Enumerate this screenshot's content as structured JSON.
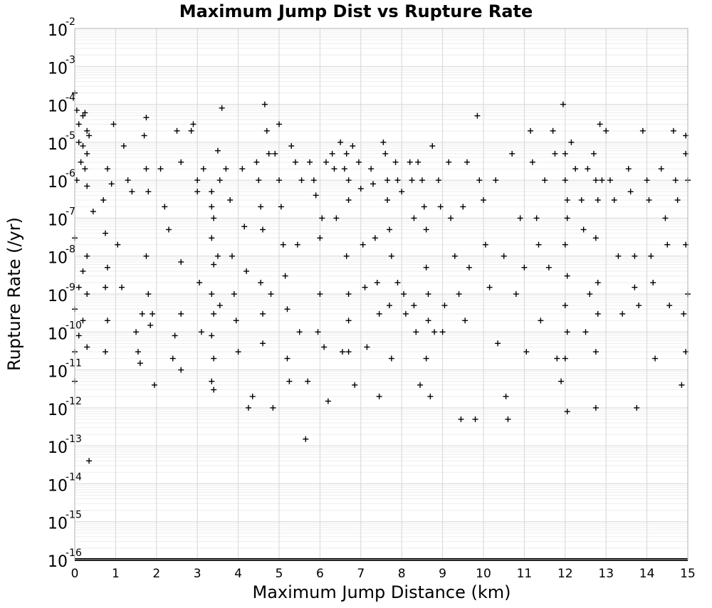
{
  "chart_data": {
    "type": "scatter",
    "title": "Maximum Jump Dist vs Rupture Rate",
    "xlabel": "Maximum Jump Distance (km)",
    "ylabel": "Rupture Rate (/yr)",
    "xlim": [
      0,
      15
    ],
    "ylim": [
      1e-16,
      0.01
    ],
    "yscale": "log",
    "grid": true,
    "marker": "+",
    "x_ticks": [
      "0",
      "1",
      "2",
      "3",
      "4",
      "5",
      "6",
      "7",
      "8",
      "9",
      "10",
      "11",
      "12",
      "13",
      "14",
      "15"
    ],
    "y_ticks": [
      {
        "base": "10",
        "exp": "-2"
      },
      {
        "base": "10",
        "exp": "-3"
      },
      {
        "base": "10",
        "exp": "-4"
      },
      {
        "base": "10",
        "exp": "-5"
      },
      {
        "base": "10",
        "exp": "-6"
      },
      {
        "base": "10",
        "exp": "-7"
      },
      {
        "base": "10",
        "exp": "-8"
      },
      {
        "base": "10",
        "exp": "-9"
      },
      {
        "base": "10",
        "exp": "-10"
      },
      {
        "base": "10",
        "exp": "-11"
      },
      {
        "base": "10",
        "exp": "-12"
      },
      {
        "base": "10",
        "exp": "-13"
      },
      {
        "base": "10",
        "exp": "-14"
      },
      {
        "base": "10",
        "exp": "-15"
      },
      {
        "base": "10",
        "exp": "-16"
      }
    ],
    "points": [
      [
        0.0,
        0.0002
      ],
      [
        0.05,
        7e-05
      ],
      [
        0.1,
        3e-05
      ],
      [
        0.2,
        5e-05
      ],
      [
        0.25,
        6e-05
      ],
      [
        0.3,
        2e-05
      ],
      [
        0.35,
        1.5e-05
      ],
      [
        0.1,
        1e-05
      ],
      [
        0.2,
        8e-06
      ],
      [
        0.3,
        5e-06
      ],
      [
        0.15,
        3e-06
      ],
      [
        0.25,
        2e-06
      ],
      [
        0.05,
        1e-06
      ],
      [
        0.3,
        7e-07
      ],
      [
        0.45,
        1.5e-07
      ],
      [
        0.0,
        3e-08
      ],
      [
        0.3,
        1e-08
      ],
      [
        0.2,
        4e-09
      ],
      [
        0.1,
        1.5e-09
      ],
      [
        0.3,
        1e-09
      ],
      [
        0.0,
        4e-10
      ],
      [
        0.2,
        2e-10
      ],
      [
        0.1,
        8e-11
      ],
      [
        0.3,
        4e-11
      ],
      [
        0.0,
        3e-11
      ],
      [
        0.0,
        5e-12
      ],
      [
        0.35,
        4e-14
      ],
      [
        0.75,
        4e-08
      ],
      [
        0.8,
        2e-06
      ],
      [
        0.9,
        8e-07
      ],
      [
        0.7,
        3e-07
      ],
      [
        0.95,
        3e-05
      ],
      [
        0.8,
        5e-09
      ],
      [
        0.75,
        1.5e-09
      ],
      [
        0.8,
        2e-10
      ],
      [
        0.75,
        3e-11
      ],
      [
        1.05,
        2e-08
      ],
      [
        1.15,
        1.5e-09
      ],
      [
        1.2,
        8e-06
      ],
      [
        1.3,
        1e-06
      ],
      [
        1.4,
        5e-07
      ],
      [
        1.5,
        1e-10
      ],
      [
        1.55,
        3e-11
      ],
      [
        1.6,
        1.5e-11
      ],
      [
        1.65,
        3e-10
      ],
      [
        1.75,
        4.5e-05
      ],
      [
        1.7,
        1.5e-05
      ],
      [
        1.75,
        2e-06
      ],
      [
        1.8,
        5e-07
      ],
      [
        1.75,
        1e-08
      ],
      [
        1.8,
        1e-09
      ],
      [
        1.85,
        1.5e-10
      ],
      [
        1.9,
        3e-10
      ],
      [
        1.95,
        4e-12
      ],
      [
        2.1,
        2e-06
      ],
      [
        2.2,
        2e-07
      ],
      [
        2.3,
        5e-08
      ],
      [
        2.4,
        2e-11
      ],
      [
        2.45,
        8e-11
      ],
      [
        2.5,
        2e-05
      ],
      [
        2.6,
        3e-06
      ],
      [
        2.6,
        7e-09
      ],
      [
        2.6,
        3e-10
      ],
      [
        2.6,
        1e-11
      ],
      [
        2.85,
        2e-05
      ],
      [
        2.9,
        3e-05
      ],
      [
        3.0,
        1e-06
      ],
      [
        3.0,
        5e-07
      ],
      [
        3.05,
        2e-09
      ],
      [
        3.1,
        1e-10
      ],
      [
        3.15,
        2e-06
      ],
      [
        3.35,
        5e-07
      ],
      [
        3.35,
        2e-07
      ],
      [
        3.4,
        1e-07
      ],
      [
        3.35,
        3e-08
      ],
      [
        3.4,
        6e-09
      ],
      [
        3.35,
        1e-09
      ],
      [
        3.4,
        3e-10
      ],
      [
        3.35,
        8e-11
      ],
      [
        3.4,
        2e-11
      ],
      [
        3.35,
        5e-12
      ],
      [
        3.4,
        3e-12
      ],
      [
        3.5,
        6e-06
      ],
      [
        3.55,
        1e-06
      ],
      [
        3.5,
        1e-08
      ],
      [
        3.55,
        5e-10
      ],
      [
        3.6,
        8e-05
      ],
      [
        3.7,
        2e-06
      ],
      [
        3.8,
        3e-07
      ],
      [
        3.85,
        1e-08
      ],
      [
        3.9,
        1e-09
      ],
      [
        3.95,
        2e-10
      ],
      [
        4.0,
        3e-11
      ],
      [
        4.1,
        2e-06
      ],
      [
        4.15,
        6e-08
      ],
      [
        4.2,
        4e-09
      ],
      [
        4.25,
        1e-12
      ],
      [
        4.35,
        2e-12
      ],
      [
        4.45,
        3e-06
      ],
      [
        4.5,
        1e-06
      ],
      [
        4.55,
        2e-07
      ],
      [
        4.6,
        5e-08
      ],
      [
        4.55,
        2e-09
      ],
      [
        4.6,
        3e-10
      ],
      [
        4.6,
        5e-11
      ],
      [
        4.65,
        0.0001
      ],
      [
        4.7,
        2e-05
      ],
      [
        4.75,
        5e-06
      ],
      [
        4.8,
        1e-09
      ],
      [
        4.85,
        1e-12
      ],
      [
        4.9,
        5e-06
      ],
      [
        5.0,
        1e-06
      ],
      [
        5.0,
        3e-05
      ],
      [
        5.05,
        2e-07
      ],
      [
        5.1,
        2e-08
      ],
      [
        5.15,
        3e-09
      ],
      [
        5.2,
        4e-10
      ],
      [
        5.2,
        2e-11
      ],
      [
        5.25,
        5e-12
      ],
      [
        5.3,
        8e-06
      ],
      [
        5.4,
        3e-06
      ],
      [
        5.45,
        2e-08
      ],
      [
        5.5,
        1e-10
      ],
      [
        5.55,
        1e-06
      ],
      [
        5.65,
        1.5e-13
      ],
      [
        5.7,
        5e-12
      ],
      [
        5.75,
        3e-06
      ],
      [
        5.85,
        1e-06
      ],
      [
        5.9,
        4e-07
      ],
      [
        5.95,
        1e-10
      ],
      [
        6.0,
        1e-09
      ],
      [
        6.0,
        3e-08
      ],
      [
        6.05,
        1e-07
      ],
      [
        6.1,
        4e-11
      ],
      [
        6.15,
        3e-06
      ],
      [
        6.2,
        1.5e-12
      ],
      [
        6.3,
        5e-06
      ],
      [
        6.35,
        2e-06
      ],
      [
        6.4,
        1e-07
      ],
      [
        6.5,
        1e-05
      ],
      [
        6.55,
        3e-11
      ],
      [
        6.6,
        2e-06
      ],
      [
        6.65,
        5e-06
      ],
      [
        6.7,
        1e-06
      ],
      [
        6.7,
        3e-07
      ],
      [
        6.65,
        1e-08
      ],
      [
        6.7,
        1e-09
      ],
      [
        6.7,
        2e-10
      ],
      [
        6.7,
        3e-11
      ],
      [
        6.8,
        8e-06
      ],
      [
        6.85,
        4e-12
      ],
      [
        6.95,
        3e-06
      ],
      [
        7.0,
        6e-07
      ],
      [
        7.05,
        2e-08
      ],
      [
        7.1,
        1.5e-09
      ],
      [
        7.15,
        4e-11
      ],
      [
        7.25,
        2e-06
      ],
      [
        7.3,
        8e-07
      ],
      [
        7.35,
        3e-08
      ],
      [
        7.4,
        2e-09
      ],
      [
        7.45,
        3e-10
      ],
      [
        7.45,
        2e-12
      ],
      [
        7.55,
        1e-05
      ],
      [
        7.6,
        5e-06
      ],
      [
        7.65,
        1e-06
      ],
      [
        7.65,
        3e-07
      ],
      [
        7.7,
        5e-08
      ],
      [
        7.75,
        1e-08
      ],
      [
        7.7,
        5e-10
      ],
      [
        7.75,
        2e-11
      ],
      [
        7.85,
        3e-06
      ],
      [
        7.9,
        1e-06
      ],
      [
        7.9,
        2e-09
      ],
      [
        8.0,
        5e-07
      ],
      [
        8.05,
        1e-09
      ],
      [
        8.1,
        3e-10
      ],
      [
        8.2,
        3e-06
      ],
      [
        8.25,
        1e-06
      ],
      [
        8.3,
        1e-07
      ],
      [
        8.3,
        5e-10
      ],
      [
        8.35,
        1e-10
      ],
      [
        8.4,
        3e-06
      ],
      [
        8.45,
        4e-12
      ],
      [
        8.5,
        1e-06
      ],
      [
        8.55,
        2e-07
      ],
      [
        8.6,
        5e-08
      ],
      [
        8.6,
        5e-09
      ],
      [
        8.65,
        1e-09
      ],
      [
        8.65,
        2e-10
      ],
      [
        8.6,
        2e-11
      ],
      [
        8.7,
        2e-12
      ],
      [
        8.75,
        8e-06
      ],
      [
        8.8,
        1e-10
      ],
      [
        8.9,
        1e-06
      ],
      [
        8.95,
        2e-07
      ],
      [
        9.0,
        1e-10
      ],
      [
        9.05,
        5e-10
      ],
      [
        9.15,
        3e-06
      ],
      [
        9.2,
        1e-07
      ],
      [
        9.3,
        1e-08
      ],
      [
        9.4,
        1e-09
      ],
      [
        9.45,
        5e-13
      ],
      [
        9.5,
        2e-07
      ],
      [
        9.55,
        2e-10
      ],
      [
        9.6,
        3e-06
      ],
      [
        9.65,
        5e-09
      ],
      [
        9.8,
        5e-13
      ],
      [
        9.85,
        5e-05
      ],
      [
        9.9,
        1e-06
      ],
      [
        10.0,
        3e-07
      ],
      [
        10.05,
        2e-08
      ],
      [
        10.15,
        1.5e-09
      ],
      [
        10.3,
        1e-06
      ],
      [
        10.35,
        5e-11
      ],
      [
        10.5,
        1e-08
      ],
      [
        10.55,
        2e-12
      ],
      [
        10.6,
        5e-13
      ],
      [
        10.7,
        5e-06
      ],
      [
        10.8,
        1e-09
      ],
      [
        10.9,
        1e-07
      ],
      [
        11.0,
        5e-09
      ],
      [
        11.05,
        3e-11
      ],
      [
        11.15,
        2e-05
      ],
      [
        11.2,
        3e-06
      ],
      [
        11.3,
        1e-07
      ],
      [
        11.35,
        2e-08
      ],
      [
        11.4,
        2e-10
      ],
      [
        11.5,
        1e-06
      ],
      [
        11.6,
        5e-09
      ],
      [
        11.7,
        2e-05
      ],
      [
        11.75,
        5e-06
      ],
      [
        11.8,
        2e-11
      ],
      [
        11.9,
        5e-12
      ],
      [
        11.95,
        0.0001
      ],
      [
        12.0,
        5e-06
      ],
      [
        12.0,
        1e-06
      ],
      [
        12.05,
        3e-07
      ],
      [
        12.05,
        1e-07
      ],
      [
        12.0,
        2e-08
      ],
      [
        12.05,
        3e-09
      ],
      [
        12.0,
        5e-10
      ],
      [
        12.05,
        1e-10
      ],
      [
        12.0,
        2e-11
      ],
      [
        12.05,
        8e-13
      ],
      [
        12.15,
        1e-05
      ],
      [
        12.25,
        2e-06
      ],
      [
        12.4,
        3e-07
      ],
      [
        12.45,
        5e-08
      ],
      [
        12.5,
        1e-10
      ],
      [
        12.55,
        2e-06
      ],
      [
        12.6,
        1e-09
      ],
      [
        12.7,
        5e-06
      ],
      [
        12.75,
        1e-06
      ],
      [
        12.8,
        3e-07
      ],
      [
        12.75,
        3e-08
      ],
      [
        12.8,
        2e-09
      ],
      [
        12.8,
        3e-10
      ],
      [
        12.75,
        3e-11
      ],
      [
        12.75,
        1e-12
      ],
      [
        12.85,
        3e-05
      ],
      [
        12.9,
        1e-06
      ],
      [
        13.0,
        2e-05
      ],
      [
        13.1,
        1e-06
      ],
      [
        13.2,
        3e-07
      ],
      [
        13.3,
        1e-08
      ],
      [
        13.4,
        3e-10
      ],
      [
        13.55,
        2e-06
      ],
      [
        13.6,
        5e-07
      ],
      [
        13.7,
        1e-08
      ],
      [
        13.7,
        1.5e-09
      ],
      [
        13.75,
        1e-12
      ],
      [
        13.8,
        5e-10
      ],
      [
        13.9,
        2e-05
      ],
      [
        14.0,
        1e-06
      ],
      [
        14.05,
        3e-07
      ],
      [
        14.1,
        1e-08
      ],
      [
        14.15,
        2e-09
      ],
      [
        14.2,
        2e-11
      ],
      [
        14.35,
        2e-06
      ],
      [
        14.45,
        1e-07
      ],
      [
        14.5,
        2e-08
      ],
      [
        14.55,
        5e-10
      ],
      [
        14.65,
        2e-05
      ],
      [
        14.7,
        1e-06
      ],
      [
        14.75,
        3e-07
      ],
      [
        14.85,
        4e-12
      ],
      [
        14.9,
        3e-10
      ],
      [
        14.95,
        1.5e-05
      ],
      [
        14.95,
        5e-06
      ],
      [
        15.0,
        1e-06
      ],
      [
        14.95,
        2e-08
      ],
      [
        15.0,
        1e-09
      ],
      [
        14.95,
        3e-11
      ]
    ]
  }
}
